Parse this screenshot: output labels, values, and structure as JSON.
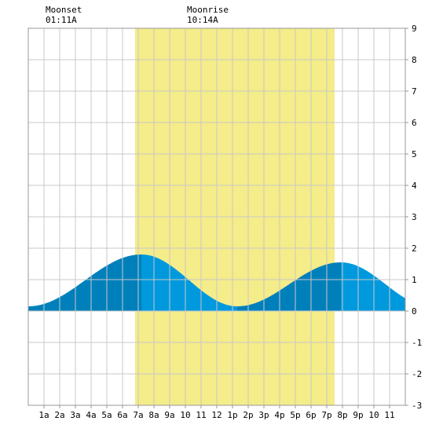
{
  "annotations": [
    {
      "name": "Moonset",
      "time": "01:11A",
      "hour": 1.18
    },
    {
      "name": "Moonrise",
      "time": "10:14A",
      "hour": 10.23
    }
  ],
  "chart_data": {
    "type": "area",
    "title": "",
    "xlabel": "",
    "ylabel": "",
    "xlim": [
      0,
      24
    ],
    "ylim": [
      -3,
      9
    ],
    "y_ticks": [
      -3,
      -2,
      -1,
      0,
      1,
      2,
      3,
      4,
      5,
      6,
      7,
      8,
      9
    ],
    "x_tick_labels": [
      "1a",
      "2a",
      "3a",
      "4a",
      "5a",
      "6a",
      "7a",
      "8a",
      "9a",
      "10",
      "11",
      "12",
      "1p",
      "2p",
      "3p",
      "4p",
      "5p",
      "6p",
      "7p",
      "8p",
      "9p",
      "10",
      "11"
    ],
    "grid": true,
    "daylight": {
      "start_hour": 6.8,
      "end_hour": 19.5
    },
    "extremes": [
      {
        "type": "low",
        "hour": 0.0,
        "height": 0.15
      },
      {
        "type": "high",
        "hour": 7.2,
        "height": 1.8
      },
      {
        "type": "low",
        "hour": 13.3,
        "height": 0.15
      },
      {
        "type": "high",
        "hour": 19.9,
        "height": 1.55
      },
      {
        "type": "low",
        "hour": 25.6,
        "height": 0.15
      }
    ],
    "colors": {
      "background": "#ffffff",
      "daylight": "#f5ec8a",
      "grid": "#c8c8c8",
      "rising": "#0080bb",
      "falling": "#0099dd",
      "frame": "#999999"
    }
  }
}
